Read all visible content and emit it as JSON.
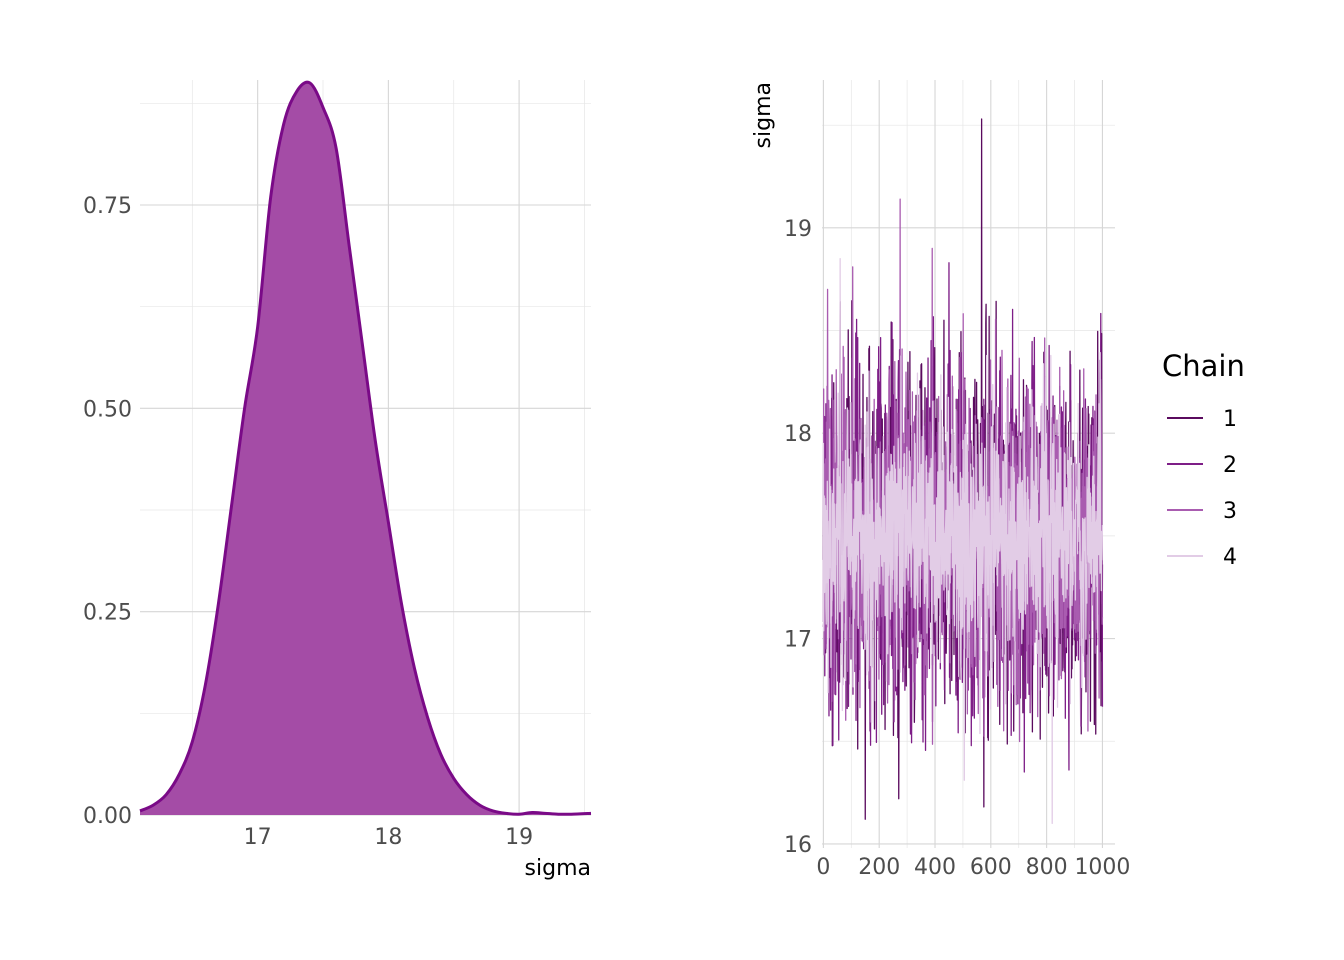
{
  "chart_data": [
    {
      "type": "area",
      "xlabel": "sigma",
      "ylabel": "",
      "xlim": [
        16.1,
        19.55
      ],
      "ylim": [
        0,
        0.9
      ],
      "x_ticks": [
        "17",
        "18",
        "19"
      ],
      "y_ticks": [
        "0.00",
        "0.25",
        "0.50",
        "0.75"
      ],
      "fill_color": "#a44ca6",
      "line_color": "#7a0a87",
      "x": [
        16.1,
        16.2,
        16.3,
        16.4,
        16.5,
        16.6,
        16.7,
        16.8,
        16.9,
        17.0,
        17.1,
        17.2,
        17.3,
        17.4,
        17.5,
        17.6,
        17.7,
        17.8,
        17.9,
        18.0,
        18.1,
        18.2,
        18.3,
        18.4,
        18.5,
        18.6,
        18.7,
        18.8,
        18.9,
        19.0,
        19.1,
        19.2,
        19.3,
        19.4,
        19.55
      ],
      "y": [
        0.005,
        0.012,
        0.025,
        0.05,
        0.09,
        0.16,
        0.26,
        0.38,
        0.5,
        0.6,
        0.76,
        0.85,
        0.89,
        0.9,
        0.87,
        0.82,
        0.7,
        0.58,
        0.46,
        0.36,
        0.26,
        0.18,
        0.12,
        0.075,
        0.045,
        0.025,
        0.012,
        0.005,
        0.002,
        0.001,
        0.003,
        0.002,
        0.001,
        0.001,
        0.002
      ]
    },
    {
      "type": "line",
      "xlabel": "",
      "ylabel": "sigma",
      "xlim": [
        -5,
        1045
      ],
      "ylim": [
        15.98,
        19.72
      ],
      "x_ticks": [
        "0",
        "200",
        "400",
        "600",
        "800",
        "1000"
      ],
      "y_ticks": [
        "16",
        "17",
        "18",
        "19"
      ],
      "legend_title": "Chain",
      "legend_position": "right",
      "iterations": 1000,
      "series": [
        {
          "name": "1",
          "color": "#5a0a5e",
          "mean": 17.5,
          "sd": 0.42,
          "seed": 11,
          "spikes": [
            [
              567,
              19.53
            ],
            [
              575,
              16.18
            ],
            [
              150,
              16.12
            ],
            [
              270,
              16.22
            ]
          ]
        },
        {
          "name": "2",
          "color": "#7e1e87",
          "mean": 17.5,
          "sd": 0.4,
          "seed": 23,
          "spikes": [
            [
              450,
              18.83
            ],
            [
              880,
              16.36
            ],
            [
              720,
              16.35
            ]
          ]
        },
        {
          "name": "3",
          "color": "#a95cb0",
          "mean": 17.5,
          "sd": 0.38,
          "seed": 37,
          "spikes": [
            [
              275,
              19.14
            ],
            [
              390,
              18.9
            ],
            [
              105,
              18.81
            ],
            [
              15,
              18.7
            ]
          ]
        },
        {
          "name": "4",
          "color": "#e2cce6",
          "mean": 17.5,
          "sd": 0.32,
          "seed": 53,
          "spikes": [
            [
              820,
              16.1
            ],
            [
              505,
              16.31
            ],
            [
              60,
              18.85
            ]
          ]
        }
      ]
    }
  ]
}
